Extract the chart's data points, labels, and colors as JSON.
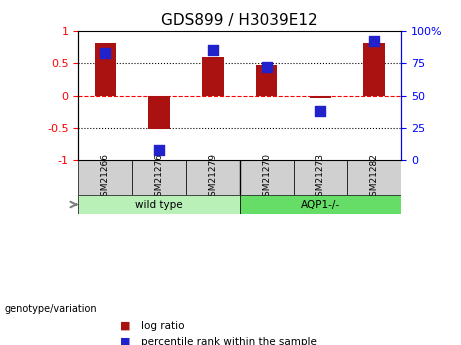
{
  "title": "GDS899 / H3039E12",
  "samples": [
    "GSM21266",
    "GSM21276",
    "GSM21279",
    "GSM21270",
    "GSM21273",
    "GSM21282"
  ],
  "log_ratio": [
    0.82,
    -0.52,
    0.6,
    0.48,
    -0.04,
    0.82
  ],
  "percentile_rank": [
    83,
    8,
    85,
    72,
    38,
    92
  ],
  "groups": [
    {
      "label": "wild type",
      "indices": [
        0,
        1,
        2
      ],
      "color": "#b8f0b8"
    },
    {
      "label": "AQP1-/-",
      "indices": [
        3,
        4,
        5
      ],
      "color": "#66dd66"
    }
  ],
  "bar_color": "#aa1111",
  "dot_color": "#2222cc",
  "y_left_ticks": [
    -1,
    -0.5,
    0,
    0.5,
    1
  ],
  "y_right_ticks": [
    0,
    25,
    50,
    75,
    100
  ],
  "y_left_tick_labels": [
    "-1",
    "-0.5",
    "0",
    "0.5",
    "1"
  ],
  "y_right_tick_labels": [
    "0",
    "25",
    "50",
    "75",
    "100%"
  ],
  "hline_positions": [
    -0.5,
    0,
    0.5
  ],
  "hline_styles": [
    "dotted",
    "dashed",
    "dotted"
  ],
  "hline_colors": [
    "black",
    "red",
    "black"
  ],
  "genotype_label": "genotype/variation",
  "legend_items": [
    {
      "label": "log ratio",
      "color": "#aa1111"
    },
    {
      "label": "percentile rank within the sample",
      "color": "#2222cc"
    }
  ],
  "bar_width": 0.4,
  "dot_size": 60,
  "ylim": [
    -1,
    1
  ],
  "y2lim": [
    0,
    100
  ]
}
